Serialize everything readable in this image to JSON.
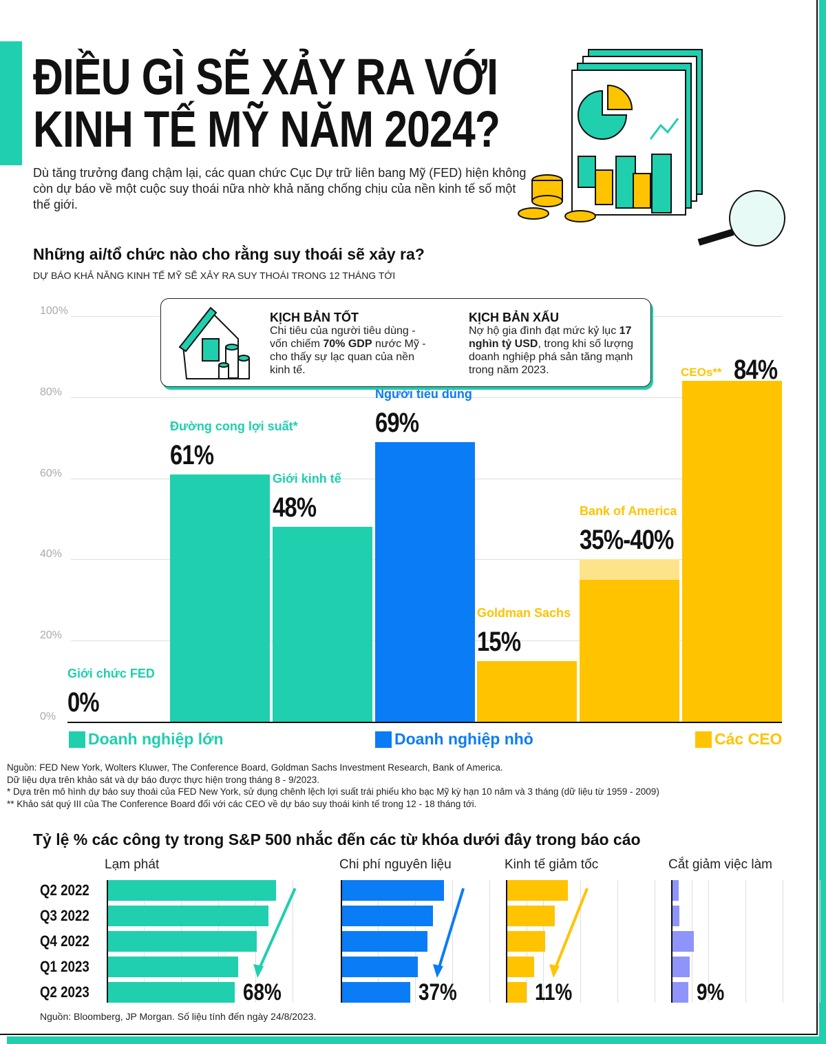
{
  "header": {
    "title_line1": "ĐIỀU GÌ SẼ XẢY RA VỚI",
    "title_line2": "KINH TẾ MỸ NĂM 2024?",
    "intro": "Dù tăng trưởng đang chậm lại, các quan chức Cục Dự trữ liên bang Mỹ (FED) hiện không còn dự báo về một cuộc suy thoái nữa nhờ khả năng chống chịu của nền kinh tế số một thế giới."
  },
  "section1": {
    "title": "Những ai/tổ chức nào cho rằng suy thoái sẽ xảy ra?",
    "subtitle": "DỰ BÁO KHẢ NĂNG KINH TẾ MỸ SẼ XẢY RA SUY THOÁI TRONG 12 THÁNG TỚI"
  },
  "scenarios": {
    "good": {
      "title": "KỊCH BẢN TỐT",
      "text1": "Chi tiêu của người tiêu dùng - vốn chiếm ",
      "bold": "70% GDP",
      "text2": " nước Mỹ - cho thấy sự lạc quan của nền kinh tế."
    },
    "bad": {
      "title": "KỊCH BẢN XẤU",
      "text1": "Nợ hộ gia đình đạt mức kỷ lục ",
      "bold": "17 nghìn tỷ USD",
      "text2": ", trong khi số lượng doanh nghiệp phá sản tăng mạnh trong năm 2023."
    }
  },
  "chart_data": [
    {
      "type": "bar",
      "ylim": [
        0,
        100
      ],
      "yticks": [
        "0%",
        "20%",
        "40%",
        "60%",
        "80%",
        "100%"
      ],
      "grid": true,
      "categories": [
        "Giới chức FED",
        "Đường cong lợi suất*",
        "Giới kinh tế",
        "Người tiêu dùng",
        "Goldman Sachs",
        "Bank of America",
        "CEOs**"
      ],
      "values": [
        0,
        61,
        48,
        69,
        15,
        35,
        84
      ],
      "range_high": [
        null,
        null,
        null,
        null,
        null,
        40,
        null
      ],
      "labels": [
        "0%",
        "61%",
        "48%",
        "69%",
        "15%",
        "35%-40%",
        "84%"
      ],
      "groups": [
        "Doanh nghiệp lớn",
        "Doanh nghiệp lớn",
        "Doanh nghiệp lớn",
        "Doanh nghiệp nhỏ",
        "Các CEO",
        "Các CEO",
        "Các CEO"
      ],
      "legend": [
        {
          "name": "Doanh nghiệp lớn",
          "color": "#1fcfae"
        },
        {
          "name": "Doanh nghiệp nhỏ",
          "color": "#0a7cf5"
        },
        {
          "name": "Các CEO",
          "color": "#ffc300"
        }
      ],
      "legend_position": "bottom"
    },
    {
      "type": "bar",
      "orientation": "horizontal",
      "title": "Tỷ lệ % các công ty trong S&P 500 nhắc đến các từ khóa dưới đây trong báo cáo",
      "categories": [
        "Q2 2022",
        "Q3 2022",
        "Q4 2022",
        "Q1 2023",
        "Q2 2023"
      ],
      "panels": [
        {
          "name": "Lạm phát",
          "color": "#1fcfae",
          "values": [
            90,
            86,
            80,
            70,
            68
          ],
          "label": "68%"
        },
        {
          "name": "Chi phí nguyên liệu",
          "color": "#0a7cf5",
          "values": [
            55,
            49,
            46,
            41,
            37
          ],
          "label": "37%"
        },
        {
          "name": "Kinh tế giảm tốc",
          "color": "#ffc300",
          "values": [
            33,
            26,
            21,
            15,
            11
          ],
          "label": "11%"
        },
        {
          "name": "Cắt giảm việc làm",
          "color": "#8f94fb",
          "values": [
            4,
            4.5,
            12,
            10,
            9
          ],
          "label": "9%"
        }
      ]
    }
  ],
  "notes": [
    "Nguồn: FED New York, Wolters Kluwer, The Conference Board, Goldman Sachs Investment Research, Bank of America.",
    "Dữ liệu dựa trên khảo sát và dự báo được thực hiện trong tháng 8 - 9/2023.",
    "* Dựa trên mô hình dự báo suy thoái của FED New York, sử dụng chênh lệch lợi suất trái phiếu kho bạc Mỹ kỳ hạn 10 năm và 3 tháng (dữ liệu từ 1959 - 2009)",
    "** Khảo sát quý III của The Conference Board đối với các CEO về dự báo suy thoái kinh tế trong 12 - 18 tháng tới."
  ],
  "source2": "Nguồn: Bloomberg, JP Morgan. Số liệu tính đến ngày 24/8/2023."
}
